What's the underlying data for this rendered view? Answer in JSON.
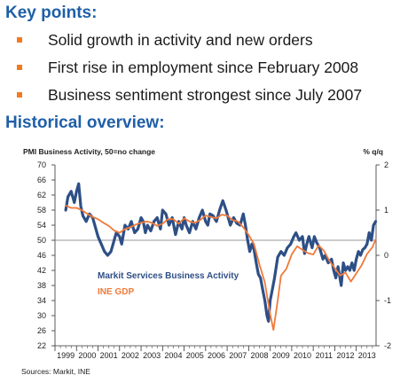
{
  "key_points": {
    "title": "Key points:",
    "items": [
      "Solid growth in activity and new orders",
      "First rise in employment since February 2008",
      "Business sentiment strongest since July 2007"
    ]
  },
  "historical": {
    "title": "Historical overview:"
  },
  "colors": {
    "heading": "#1f5fa8",
    "bullet": "#f47920",
    "pmi_line": "#2e4f86",
    "gdp_line": "#f07a3a"
  },
  "chart_data": {
    "type": "line",
    "title": "PMI Business Activity, 50=no change",
    "right_axis_label": "% q/q",
    "source": "Sources: Markit, INE",
    "left_axis": {
      "range": [
        22,
        70
      ],
      "ticks": [
        "70",
        "66",
        "62",
        "58",
        "54",
        "50",
        "46",
        "42",
        "38",
        "34",
        "30",
        "26",
        "22"
      ]
    },
    "right_axis": {
      "range": [
        -2,
        2
      ],
      "ticks": [
        "2",
        "1",
        "0",
        "-1",
        "-2"
      ]
    },
    "x_range": [
      1999,
      2013.92
    ],
    "categories": [
      "1999",
      "2000",
      "2001",
      "2002",
      "2003",
      "2004",
      "2005",
      "2006",
      "2007",
      "2008",
      "2009",
      "2010",
      "2011",
      "2012",
      "2013"
    ],
    "reference_line": 50,
    "grid": false,
    "series": [
      {
        "name": "Markit Services Business Activity",
        "axis": "left",
        "color": "#2e4f86",
        "x": [
          1999.5,
          1999.6,
          1999.75,
          1999.9,
          2000.0,
          2000.1,
          2000.2,
          2000.3,
          2000.45,
          2000.6,
          2000.75,
          2000.9,
          2001.0,
          2001.15,
          2001.3,
          2001.45,
          2001.6,
          2001.75,
          2001.85,
          2002.0,
          2002.1,
          2002.25,
          2002.4,
          2002.55,
          2002.7,
          2002.85,
          2003.0,
          2003.1,
          2003.2,
          2003.3,
          2003.45,
          2003.6,
          2003.75,
          2003.9,
          2004.0,
          2004.15,
          2004.3,
          2004.45,
          2004.6,
          2004.75,
          2004.9,
          2005.0,
          2005.1,
          2005.25,
          2005.4,
          2005.55,
          2005.7,
          2005.85,
          2006.0,
          2006.1,
          2006.2,
          2006.35,
          2006.5,
          2006.65,
          2006.8,
          2006.95,
          2007.05,
          2007.15,
          2007.3,
          2007.45,
          2007.6,
          2007.75,
          2007.85,
          2007.95,
          2008.05,
          2008.15,
          2008.25,
          2008.35,
          2008.45,
          2008.55,
          2008.65,
          2008.75,
          2008.85,
          2008.92,
          2009.0,
          2009.1,
          2009.2,
          2009.35,
          2009.5,
          2009.65,
          2009.8,
          2009.95,
          2010.1,
          2010.2,
          2010.35,
          2010.5,
          2010.6,
          2010.7,
          2010.8,
          2010.95,
          2011.05,
          2011.15,
          2011.3,
          2011.45,
          2011.55,
          2011.7,
          2011.85,
          2011.95,
          2012.05,
          2012.15,
          2012.3,
          2012.4,
          2012.5,
          2012.6,
          2012.7,
          2012.8,
          2012.9,
          2013.0,
          2013.1,
          2013.2,
          2013.3,
          2013.4,
          2013.5,
          2013.6,
          2013.7,
          2013.8,
          2013.9
        ],
        "y": [
          58,
          61.5,
          63,
          60,
          63,
          65,
          59,
          56.5,
          55,
          57,
          56,
          53,
          51,
          49,
          47,
          46,
          47,
          50,
          52,
          51,
          49,
          54,
          53,
          55,
          52,
          53,
          56,
          55,
          52,
          54,
          52.5,
          55,
          56,
          53,
          58,
          57,
          54,
          56,
          51.5,
          55,
          53,
          56,
          54,
          52,
          55,
          53,
          56,
          58,
          55,
          54,
          57,
          56.5,
          55,
          58,
          60.5,
          58,
          56,
          54,
          56,
          54.5,
          54,
          57,
          54,
          50,
          47,
          49,
          47.5,
          44,
          41,
          40,
          37,
          34,
          30,
          28.5,
          34,
          37,
          40,
          45.5,
          47,
          46,
          48,
          49,
          51,
          52,
          50,
          51,
          46.5,
          49,
          51,
          48,
          51,
          49.5,
          48,
          45,
          46,
          44,
          45,
          42,
          40,
          43,
          38,
          44,
          42,
          43,
          42,
          44,
          42,
          45,
          47,
          46,
          47.5,
          48,
          49,
          52,
          50,
          54,
          55
        ]
      },
      {
        "name": "INE GDP",
        "axis": "right",
        "color": "#f07a3a",
        "x": [
          1999.5,
          1999.75,
          2000.0,
          2000.25,
          2000.5,
          2000.75,
          2001.0,
          2001.25,
          2001.5,
          2001.75,
          2002.0,
          2002.25,
          2002.5,
          2002.75,
          2003.0,
          2003.25,
          2003.5,
          2003.75,
          2004.0,
          2004.25,
          2004.5,
          2004.75,
          2005.0,
          2005.25,
          2005.5,
          2005.75,
          2006.0,
          2006.25,
          2006.5,
          2006.75,
          2007.0,
          2007.25,
          2007.5,
          2007.75,
          2008.0,
          2008.25,
          2008.5,
          2008.75,
          2009.0,
          2009.15,
          2009.35,
          2009.5,
          2009.75,
          2010.0,
          2010.25,
          2010.5,
          2010.75,
          2011.0,
          2011.25,
          2011.5,
          2011.75,
          2012.0,
          2012.25,
          2012.5,
          2012.75,
          2013.0,
          2013.25,
          2013.5,
          2013.75,
          2013.9
        ],
        "y": [
          1.1,
          1.05,
          1.05,
          1.0,
          0.92,
          0.85,
          0.8,
          0.72,
          0.65,
          0.55,
          0.5,
          0.58,
          0.62,
          0.68,
          0.72,
          0.75,
          0.72,
          0.65,
          0.7,
          0.8,
          0.8,
          0.7,
          0.82,
          0.75,
          0.72,
          0.78,
          0.88,
          0.85,
          0.82,
          0.9,
          0.88,
          0.78,
          0.75,
          0.62,
          0.45,
          0.25,
          -0.2,
          -0.6,
          -1.3,
          -1.65,
          -1.0,
          -0.45,
          -0.3,
          0.02,
          0.2,
          0.12,
          0.05,
          0.02,
          0.22,
          0.1,
          -0.12,
          -0.28,
          -0.45,
          -0.38,
          -0.58,
          -0.4,
          -0.22,
          0.03,
          0.18,
          0.35
        ]
      }
    ],
    "legend": "inside-lower-left"
  }
}
